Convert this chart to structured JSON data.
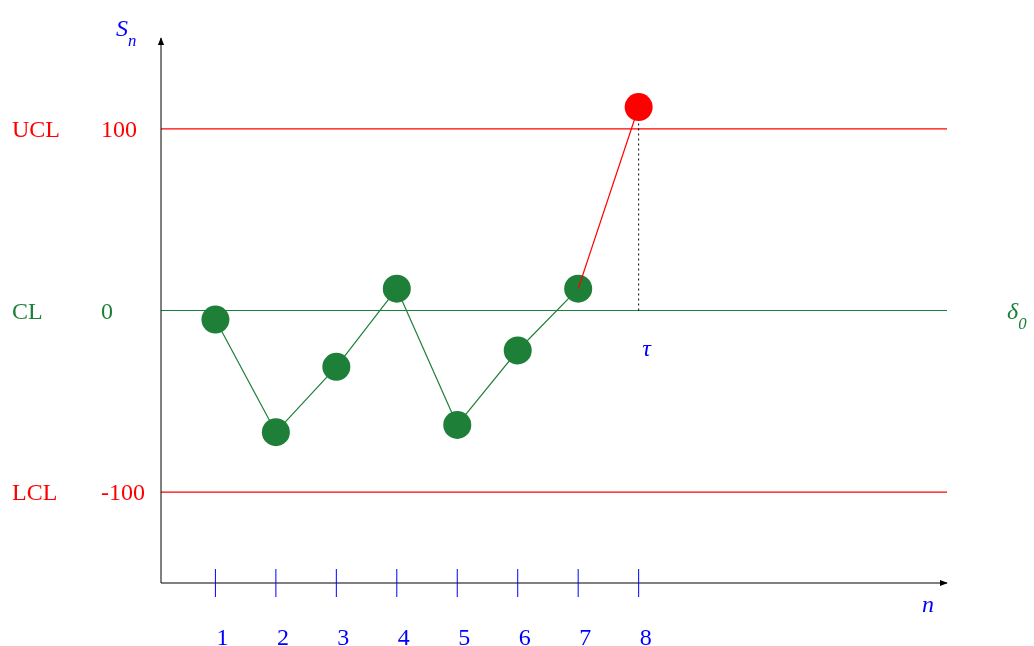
{
  "chart_data": {
    "type": "line",
    "xlabel": "n",
    "ylabel": "S$_{n}$",
    "xlim": [
      0.1,
      13.1
    ],
    "ylim": [
      -150,
      150
    ],
    "xticks": [
      1,
      2,
      3,
      4,
      5,
      6,
      7,
      8
    ],
    "yticks": [
      -100,
      0,
      100
    ],
    "grid": false,
    "line_style": "solid",
    "series": [
      {
        "color": "#1d7f38",
        "x": [
          1,
          2,
          3,
          4,
          5,
          6,
          7
        ],
        "values": [
          -5,
          -67,
          -31,
          12,
          -63,
          -22,
          12
        ],
        "marker": "circle"
      },
      {
        "type": "line",
        "color": "#ff0000",
        "x": [
          7,
          8
        ],
        "values": [
          12,
          112
        ],
        "marker": "none"
      },
      {
        "type": "scatter",
        "color": "#ff0000",
        "x": [
          8
        ],
        "values": [
          112
        ],
        "marker": "circle"
      }
    ],
    "ref_lines": [
      {
        "axis": "y",
        "value": 100,
        "label": "UCL",
        "color": "#ff0000"
      },
      {
        "axis": "y",
        "value": 0,
        "label": "CL",
        "color": "#1d7f38"
      },
      {
        "axis": "y",
        "value": -100,
        "label": "LCL",
        "color": "#ff0000"
      },
      {
        "axis": "x",
        "value": 8,
        "label": "τ",
        "color": "#000000",
        "line_style": "dotted"
      }
    ],
    "annotations": [
      {
        "text": "δ$_{0}$",
        "x": 13.1,
        "y": 0
      }
    ]
  }
}
